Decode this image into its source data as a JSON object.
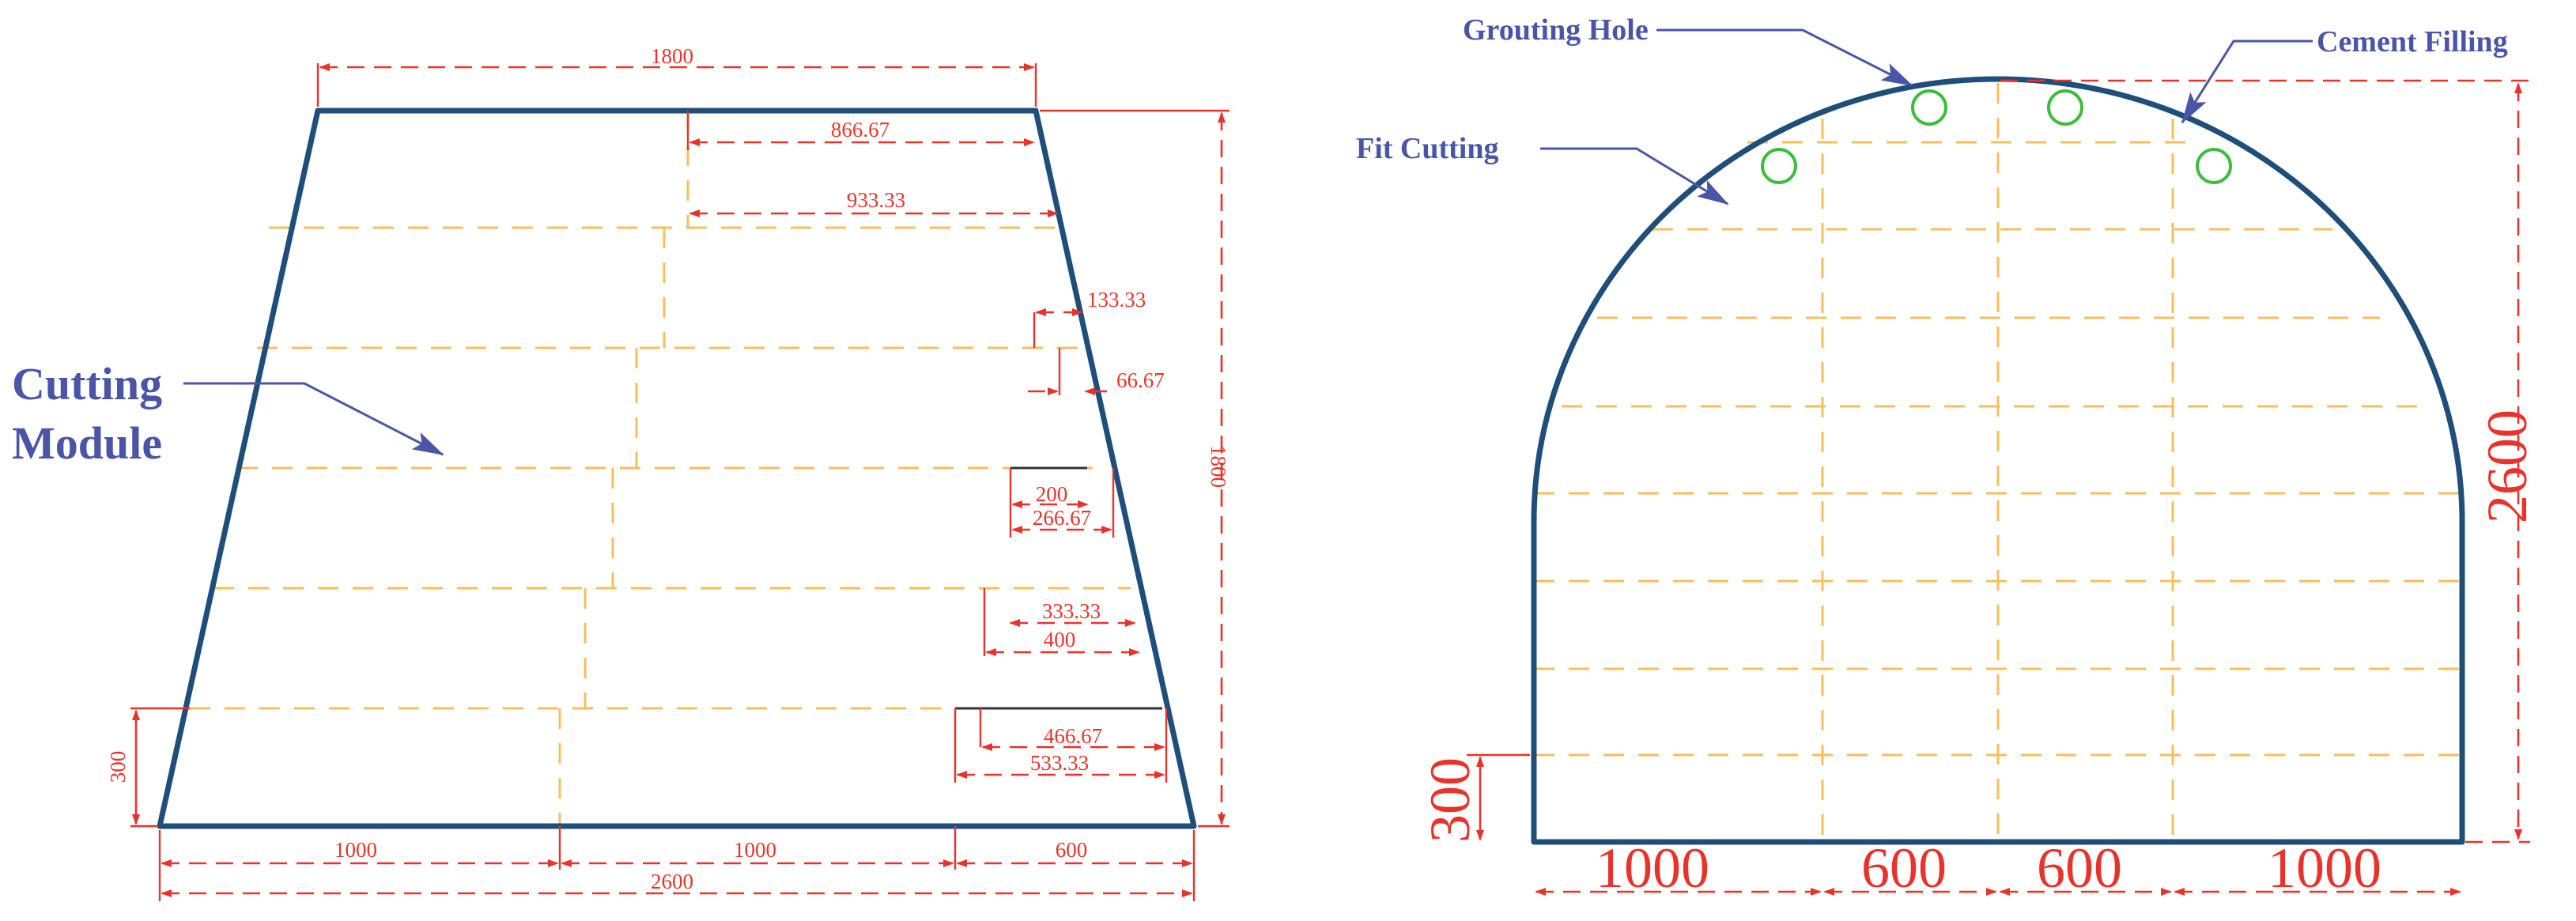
{
  "left_diagram": {
    "label_module_line1": "Cutting",
    "label_module_line2": "Module",
    "dims": {
      "top_width": "1800",
      "height_right": "1800",
      "d866": "866.67",
      "d933": "933.33",
      "d133": "133.33",
      "d66": "66.67",
      "d200": "200",
      "d266": "266.67",
      "d333": "333.33",
      "d400": "400",
      "d466": "466.67",
      "d533": "533.33",
      "left_300": "300",
      "bottom_seg1": "1000",
      "bottom_seg2": "1000",
      "bottom_seg3": "600",
      "bottom_total": "2600"
    }
  },
  "right_diagram": {
    "label_grouting": "Grouting Hole",
    "label_cement": "Cement Filling",
    "label_fit": "Fit Cutting",
    "dims": {
      "height": "2600",
      "left_300": "300",
      "seg1": "1000",
      "seg2": "600",
      "seg3": "600",
      "seg4": "1000"
    }
  },
  "colors": {
    "outline": "#1f4e7a",
    "dimension": "#e8332c",
    "grid": "#f5bf5a",
    "label": "#4b55a8",
    "hole": "#3cbd3c"
  }
}
